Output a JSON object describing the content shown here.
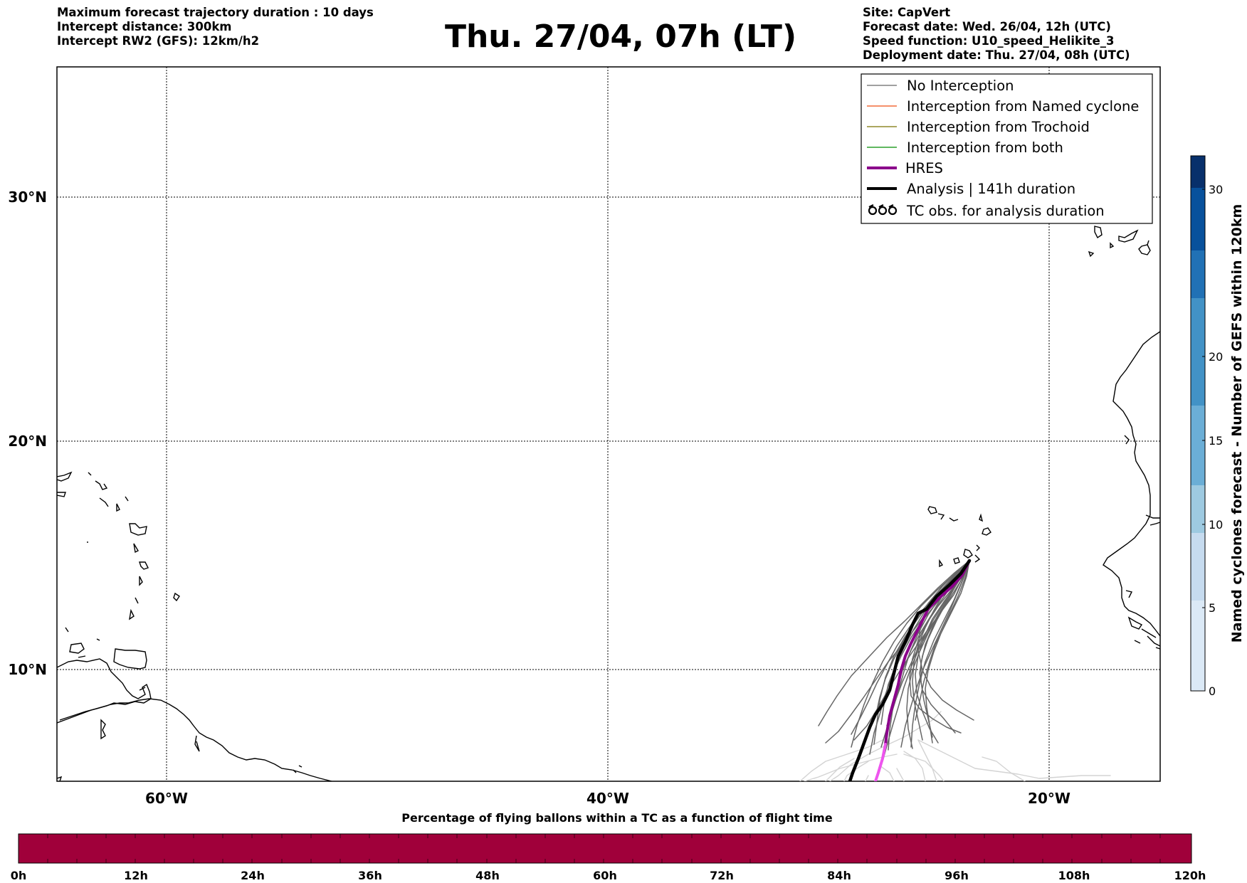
{
  "header_left": [
    "Maximum forecast trajectory duration : 10 days",
    "Intercept distance: 300km",
    "Intercept RW2 (GFS):  12km/h2"
  ],
  "title": "Thu. 27/04, 07h (LT)",
  "header_right": [
    "Site: CapVert",
    "Forecast date: Wed. 26/04, 12h (UTC)",
    "Speed function: U10_speed_Helikite_3",
    "Deployment date: Thu. 27/04, 08h (UTC)"
  ],
  "map": {
    "lon_ticks": [
      "60°W",
      "40°W",
      "20°W"
    ],
    "lat_ticks": [
      "30°N",
      "20°N",
      "10°N"
    ],
    "lon_range": [
      -65,
      -15
    ],
    "lat_range": [
      5.5,
      34.8
    ]
  },
  "legend": {
    "items": [
      {
        "label": "No Interception",
        "color": "#808080",
        "style": "thin"
      },
      {
        "label": "Interception from Named cyclone",
        "color": "#f26b3a",
        "style": "thin"
      },
      {
        "label": "Interception from Trochoid",
        "color": "#8f8a2c",
        "style": "thin"
      },
      {
        "label": "Interception from both",
        "color": "#2ca02c",
        "style": "thin"
      },
      {
        "label": "HRES",
        "color": "#8b008b",
        "style": "thick"
      },
      {
        "label": "Analysis | 141h duration",
        "color": "#000000",
        "style": "thick"
      },
      {
        "label": "TC obs. for analysis duration",
        "color": "#000000",
        "style": "symbol"
      }
    ]
  },
  "right_colorbar": {
    "label": "Named cyclones forecast - Number of GEFS within 120km",
    "ticks": [
      "0",
      "5",
      "10",
      "15",
      "20",
      "30"
    ],
    "colors": [
      "#dbe9f6",
      "#c6dbef",
      "#9ecae1",
      "#6baed6",
      "#4292c6",
      "#2171b5",
      "#08519c",
      "#08306b"
    ]
  },
  "bottom_colorbar": {
    "title": "Percentage of flying ballons within a TC as a function of flight time",
    "ticks": [
      "0h",
      "12h",
      "24h",
      "36h",
      "48h",
      "60h",
      "72h",
      "84h",
      "96h",
      "108h",
      "120h"
    ],
    "fill_color": "#a0003a"
  }
}
